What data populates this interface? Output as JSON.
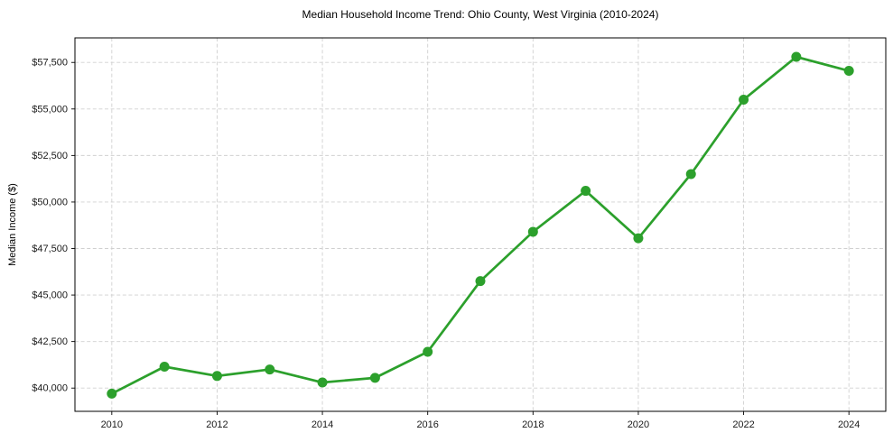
{
  "chart_data": {
    "type": "line",
    "title": "Median Household Income Trend: Ohio County, West Virginia (2010-2024)",
    "xlabel": "",
    "ylabel": "Median Income ($)",
    "x": [
      2010,
      2011,
      2012,
      2013,
      2014,
      2015,
      2016,
      2017,
      2018,
      2019,
      2020,
      2021,
      2022,
      2023,
      2024
    ],
    "y": [
      39700,
      41150,
      40650,
      41000,
      40300,
      40550,
      41950,
      45750,
      48400,
      50600,
      48050,
      51500,
      55500,
      57800,
      57050
    ],
    "series_name": "Median Household Income",
    "xticks": [
      2010,
      2012,
      2014,
      2016,
      2018,
      2020,
      2022,
      2024
    ],
    "xtick_labels": [
      "2010",
      "2012",
      "2014",
      "2016",
      "2018",
      "2020",
      "2022",
      "2024"
    ],
    "yticks": [
      40000,
      42500,
      45000,
      47500,
      50000,
      52500,
      55000,
      57500
    ],
    "ytick_labels": [
      "$40,000",
      "$42,500",
      "$45,000",
      "$47,500",
      "$50,000",
      "$52,500",
      "$55,000",
      "$57,500"
    ],
    "xlim": [
      2009.3,
      2024.7
    ],
    "ylim": [
      38750,
      58820
    ],
    "grid": true,
    "grid_style": "dashed",
    "legend": "none",
    "marker": "circle",
    "colors": {
      "line": "#2ca02c",
      "marker": "#2ca02c",
      "grid": "#d0d0d0",
      "spine": "#000000",
      "text": "#1a1a1a",
      "background": "#ffffff"
    }
  }
}
